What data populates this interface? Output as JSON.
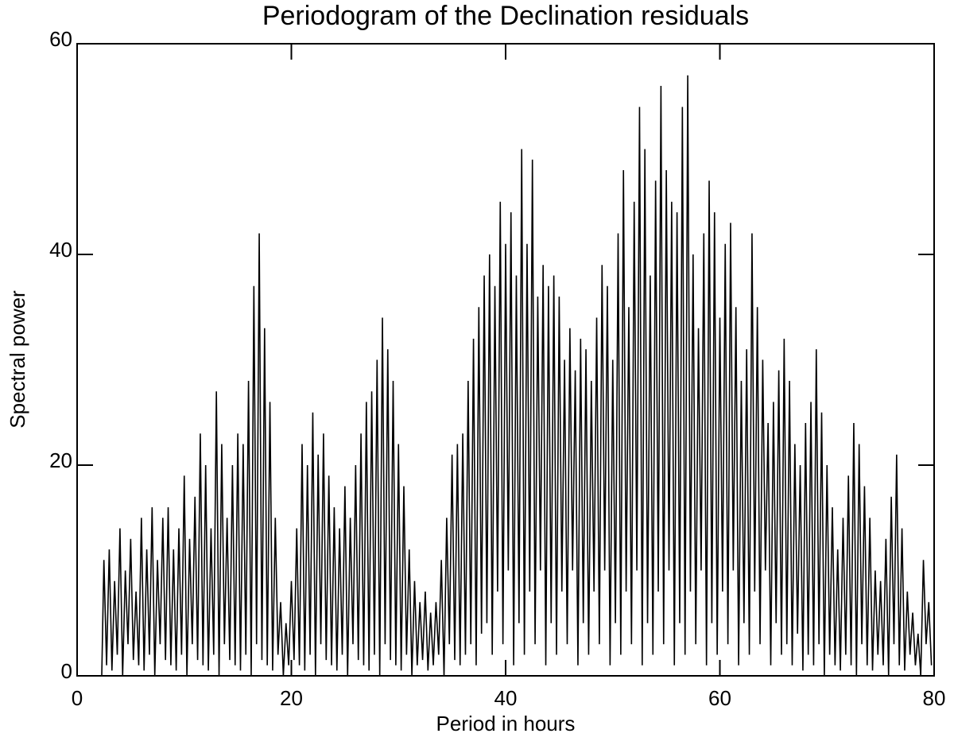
{
  "chart_data": {
    "type": "line",
    "title": "Periodogram of the Declination residuals",
    "x_label": "Period in hours",
    "y_label": "Spectral power",
    "color": "#000000",
    "xlim": [
      0,
      80
    ],
    "ylim": [
      0,
      60
    ],
    "xticks": [
      0,
      20,
      40,
      60,
      80
    ],
    "yticks": [
      0,
      20,
      40,
      60
    ],
    "x": [
      2.3,
      2.5,
      2.75,
      3,
      3.25,
      3.5,
      3.75,
      4,
      4.25,
      4.5,
      4.75,
      5,
      5.25,
      5.5,
      5.75,
      6,
      6.25,
      6.5,
      6.75,
      7,
      7.25,
      7.5,
      7.75,
      8,
      8.25,
      8.5,
      8.75,
      9,
      9.25,
      9.5,
      9.75,
      10,
      10.25,
      10.5,
      10.75,
      11,
      11.25,
      11.5,
      11.75,
      12,
      12.25,
      12.5,
      12.75,
      13,
      13.25,
      13.5,
      13.75,
      14,
      14.25,
      14.5,
      14.75,
      15,
      15.25,
      15.5,
      15.75,
      16,
      16.25,
      16.5,
      16.75,
      17,
      17.25,
      17.5,
      17.75,
      18,
      18.25,
      18.5,
      18.75,
      19,
      19.25,
      19.5,
      19.75,
      20,
      20.25,
      20.5,
      20.75,
      21,
      21.25,
      21.5,
      21.75,
      22,
      22.25,
      22.5,
      22.75,
      23,
      23.25,
      23.5,
      23.75,
      24,
      24.25,
      24.5,
      24.75,
      25,
      25.25,
      25.5,
      25.75,
      26,
      26.25,
      26.5,
      26.75,
      27,
      27.25,
      27.5,
      27.75,
      28,
      28.25,
      28.5,
      28.75,
      29,
      29.25,
      29.5,
      29.75,
      30,
      30.25,
      30.5,
      30.75,
      31,
      31.25,
      31.5,
      31.75,
      32,
      32.25,
      32.5,
      32.75,
      33,
      33.25,
      33.5,
      33.75,
      34,
      34.25,
      34.5,
      34.75,
      35,
      35.25,
      35.5,
      35.75,
      36,
      36.25,
      36.5,
      36.75,
      37,
      37.25,
      37.5,
      37.75,
      38,
      38.25,
      38.5,
      38.75,
      39,
      39.25,
      39.5,
      39.75,
      40,
      40.25,
      40.5,
      40.75,
      41,
      41.25,
      41.5,
      41.75,
      42,
      42.25,
      42.5,
      42.75,
      43,
      43.25,
      43.5,
      43.75,
      44,
      44.25,
      44.5,
      44.75,
      45,
      45.25,
      45.5,
      45.75,
      46,
      46.25,
      46.5,
      46.75,
      47,
      47.25,
      47.5,
      47.75,
      48,
      48.25,
      48.5,
      48.75,
      49,
      49.25,
      49.5,
      49.75,
      50,
      50.25,
      50.5,
      50.75,
      51,
      51.25,
      51.5,
      51.75,
      52,
      52.25,
      52.5,
      52.75,
      53,
      53.25,
      53.5,
      53.75,
      54,
      54.25,
      54.5,
      54.75,
      55,
      55.25,
      55.5,
      55.75,
      56,
      56.25,
      56.5,
      56.75,
      57,
      57.25,
      57.5,
      57.75,
      58,
      58.25,
      58.5,
      58.75,
      59,
      59.25,
      59.5,
      59.75,
      60,
      60.25,
      60.5,
      60.75,
      61,
      61.25,
      61.5,
      61.75,
      62,
      62.25,
      62.5,
      62.75,
      63,
      63.25,
      63.5,
      63.75,
      64,
      64.25,
      64.5,
      64.75,
      65,
      65.25,
      65.5,
      65.75,
      66,
      66.25,
      66.5,
      66.75,
      67,
      67.25,
      67.5,
      67.75,
      68,
      68.25,
      68.5,
      68.75,
      69,
      69.25,
      69.5,
      69.75,
      70,
      70.25,
      70.5,
      70.75,
      71,
      71.25,
      71.5,
      71.75,
      72,
      72.25,
      72.5,
      72.75,
      73,
      73.25,
      73.5,
      73.75,
      74,
      74.25,
      74.5,
      74.75,
      75,
      75.25,
      75.5,
      75.75,
      76,
      76.25,
      76.5,
      76.75,
      77,
      77.25,
      77.5,
      77.75,
      78,
      78.25,
      78.5,
      78.75,
      79,
      79.25,
      79.5,
      79.75
    ],
    "values": [
      0,
      11,
      1,
      12,
      0.5,
      9,
      2,
      14,
      0,
      10,
      3,
      13,
      1.5,
      8,
      1,
      15,
      0.5,
      12,
      2,
      16,
      0,
      11,
      3,
      15,
      1.5,
      16,
      1,
      12,
      0.5,
      14,
      2,
      19,
      0,
      13,
      3,
      17,
      1.5,
      23,
      1,
      20,
      0.5,
      14,
      2,
      27,
      0,
      22,
      3,
      15,
      1.5,
      20,
      1,
      23,
      0.5,
      22,
      2,
      28,
      0,
      37,
      3,
      42,
      1.5,
      33,
      1,
      26,
      0.5,
      15,
      2,
      7,
      0,
      5,
      1,
      9,
      1.5,
      14,
      1,
      22,
      0.5,
      20,
      2,
      25,
      0,
      21,
      3,
      23,
      1.5,
      19,
      1,
      16,
      0.5,
      14,
      2,
      18,
      0,
      15,
      3,
      20,
      1.5,
      23,
      1,
      26,
      0.5,
      27,
      2,
      30,
      0,
      34,
      3,
      31,
      1.5,
      28,
      1,
      22,
      0.5,
      18,
      2,
      12,
      0,
      9,
      1,
      7,
      1.5,
      8,
      0.5,
      6,
      1,
      7,
      2,
      11,
      0,
      15,
      3,
      21,
      1.5,
      22,
      1,
      23,
      2,
      28,
      3,
      32,
      1,
      35,
      4,
      38,
      5,
      40,
      2,
      37,
      8,
      45,
      3,
      41,
      10,
      44,
      1,
      38,
      5,
      50,
      2,
      41,
      8,
      49,
      3,
      36,
      10,
      39,
      1,
      37,
      5,
      38,
      2,
      36,
      8,
      30,
      3,
      33,
      10,
      29,
      1,
      32,
      5,
      31,
      2,
      28,
      8,
      34,
      3,
      39,
      10,
      37,
      1,
      30,
      5,
      42,
      2,
      48,
      8,
      35,
      3,
      45,
      10,
      54,
      1,
      50,
      5,
      38,
      2,
      47,
      8,
      56,
      3,
      48,
      10,
      45,
      1,
      44,
      5,
      54,
      2,
      57,
      8,
      40,
      3,
      33,
      10,
      42,
      1,
      47,
      5,
      44,
      2,
      34,
      8,
      41,
      3,
      43,
      10,
      35,
      1,
      28,
      5,
      31,
      2,
      42,
      8,
      35,
      3,
      30,
      10,
      24,
      1,
      26,
      5,
      29,
      2,
      32,
      3,
      28,
      1,
      22,
      4,
      20,
      0.5,
      24,
      2,
      26,
      1,
      31,
      3,
      25,
      0,
      20,
      2,
      16,
      1,
      12,
      0.5,
      15,
      2,
      19,
      1,
      24,
      0,
      22,
      3,
      18,
      1,
      15,
      0.5,
      10,
      2,
      9,
      1,
      13,
      0,
      17,
      3,
      21,
      1,
      14,
      0.5,
      8,
      2,
      6,
      1,
      4,
      0,
      11,
      3,
      7,
      1
    ]
  }
}
